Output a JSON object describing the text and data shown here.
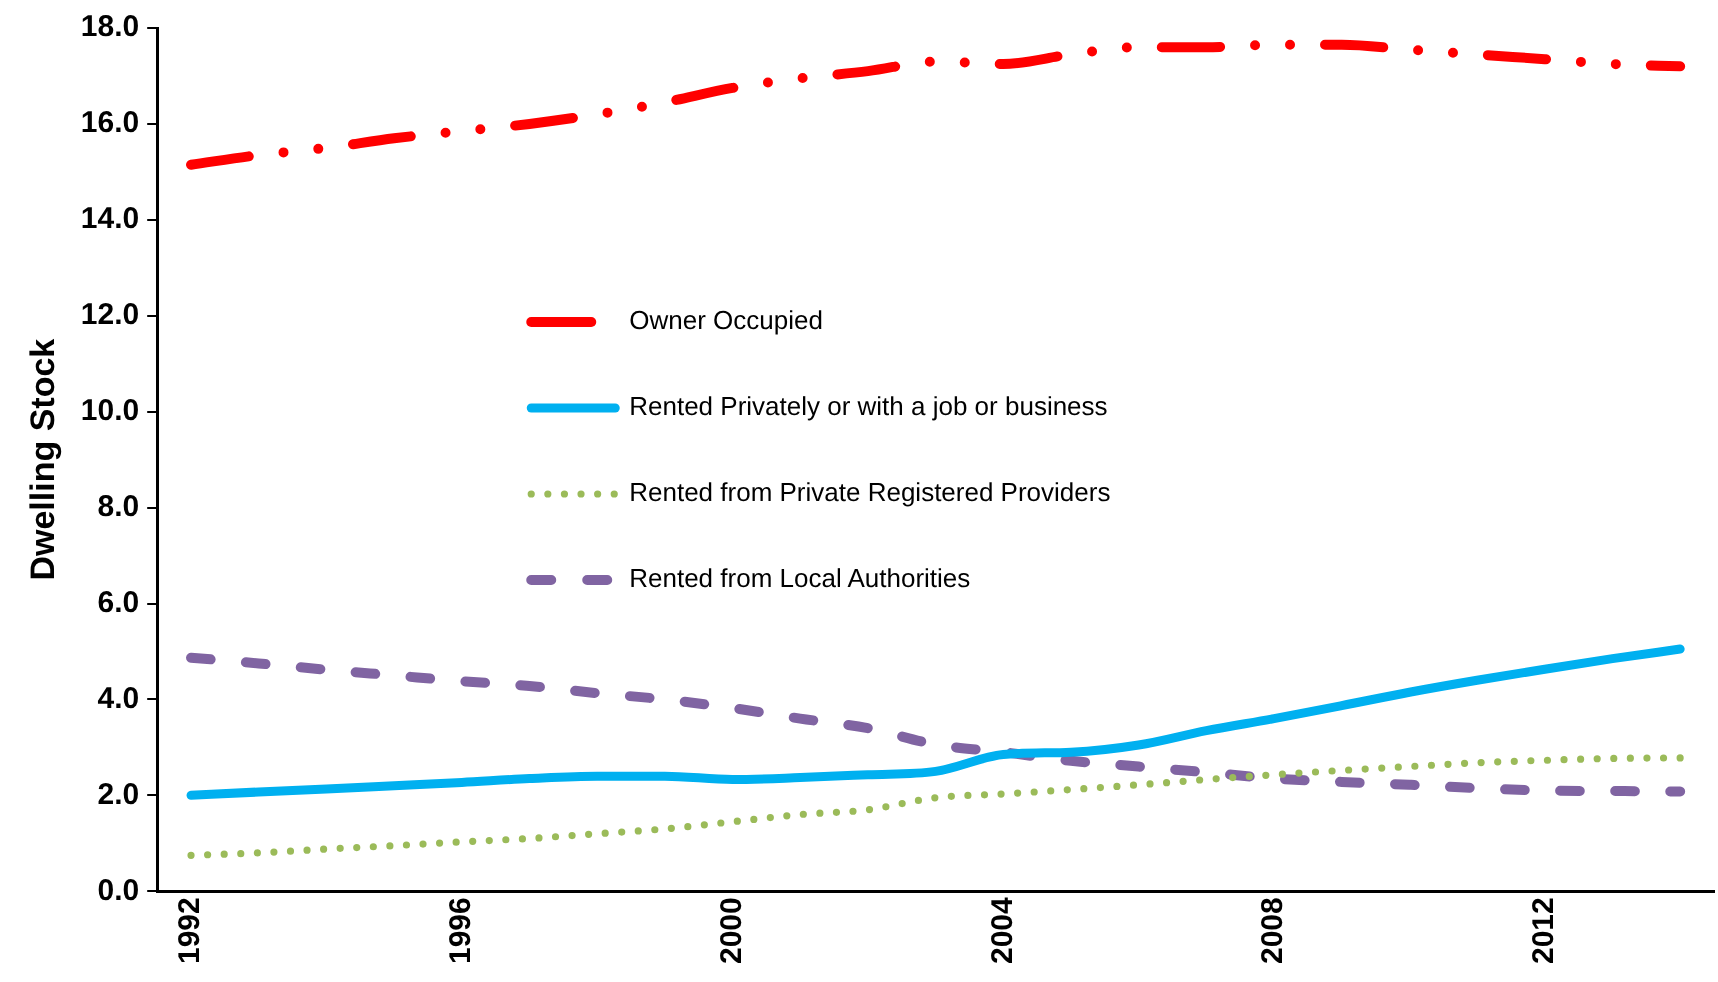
{
  "chart_data": {
    "type": "line",
    "ylabel": "Dwelling Stock",
    "x": [
      1992,
      1993,
      1994,
      1995,
      1996,
      1997,
      1998,
      1999,
      2000,
      2001,
      2002,
      2003,
      2004,
      2005,
      2006,
      2007,
      2008,
      2009,
      2010,
      2011,
      2012,
      2013,
      2014
    ],
    "xlim": [
      1991.5,
      2014.5
    ],
    "xticks": [
      1992,
      1996,
      2000,
      2004,
      2008,
      2012
    ],
    "ylim": [
      0,
      18
    ],
    "yticks": [
      {
        "value": 0,
        "label": "0.0"
      },
      {
        "value": 2,
        "label": "2.0"
      },
      {
        "value": 4,
        "label": "4.0"
      },
      {
        "value": 6,
        "label": "6.0"
      },
      {
        "value": 8,
        "label": "8.0"
      },
      {
        "value": 10,
        "label": "10.0"
      },
      {
        "value": 12,
        "label": "12.0"
      },
      {
        "value": 14,
        "label": "14.0"
      },
      {
        "value": 16,
        "label": "16.0"
      },
      {
        "value": 18,
        "label": "18.0"
      }
    ],
    "grid": false,
    "legend": "center",
    "marker": "none",
    "series": [
      {
        "name": "Owner Occupied",
        "color": "#ff0000",
        "line_style": "dashdot",
        "values": [
          15.15,
          15.35,
          15.5,
          15.7,
          15.85,
          16.0,
          16.2,
          16.45,
          16.75,
          16.95,
          17.1,
          17.3,
          17.25,
          17.45,
          17.6,
          17.6,
          17.65,
          17.65,
          17.55,
          17.45,
          17.35,
          17.25,
          17.2
        ]
      },
      {
        "name": "Rented Privately or with a job or business",
        "color": "#00b0f0",
        "line_style": "solid",
        "values": [
          2.0,
          2.07,
          2.13,
          2.2,
          2.27,
          2.35,
          2.4,
          2.4,
          2.33,
          2.37,
          2.43,
          2.5,
          2.85,
          2.9,
          3.05,
          3.35,
          3.6,
          3.87,
          4.15,
          4.4,
          4.63,
          4.85,
          5.05
        ]
      },
      {
        "name": "Rented from Private Registered Providers",
        "color": "#9bbb59",
        "line_style": "dotted",
        "values": [
          0.75,
          0.8,
          0.88,
          0.95,
          1.03,
          1.1,
          1.2,
          1.3,
          1.45,
          1.6,
          1.7,
          1.95,
          2.03,
          2.12,
          2.22,
          2.33,
          2.43,
          2.52,
          2.6,
          2.68,
          2.73,
          2.77,
          2.78
        ]
      },
      {
        "name": "Rented from Local Authorities",
        "color": "#8064a2",
        "line_style": "dashed",
        "values": [
          4.87,
          4.75,
          4.62,
          4.5,
          4.38,
          4.28,
          4.13,
          4.0,
          3.82,
          3.6,
          3.4,
          3.06,
          2.9,
          2.72,
          2.6,
          2.48,
          2.35,
          2.28,
          2.22,
          2.15,
          2.1,
          2.09,
          2.08
        ]
      }
    ]
  }
}
